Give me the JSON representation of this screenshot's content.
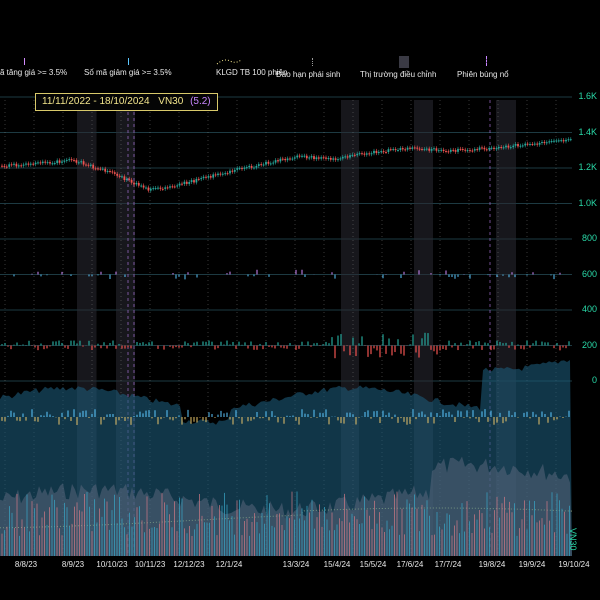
{
  "legend": {
    "items": [
      {
        "label": "ã tăng giá >= 3.5%",
        "color": "#d38cff",
        "icon": "violet-tick-icon"
      },
      {
        "label": "Số mã giảm giá >= 3.5%",
        "color": "#5cc8ff",
        "icon": "blue-tick-icon"
      },
      {
        "label": "KLGD TB 100 phiên",
        "color": "#f3e58c",
        "icon": "dotted-curve-icon"
      },
      {
        "label": "Đáo hạn phái sinh",
        "color": "#9a9a9a",
        "icon": "dotted-vline-icon"
      },
      {
        "label": "Thị trường điều chỉnh",
        "color": "#3a3a44",
        "icon": "shaded-band-icon"
      },
      {
        "label": "Phiên bùng nổ",
        "color": "#c886ff",
        "icon": "dashed-violet-vline-icon"
      }
    ]
  },
  "header": {
    "date_range": "11/11/2022 - 18/10/2024",
    "symbol": "VN30",
    "value": "(5.2)"
  },
  "side_label": "VN30",
  "colors": {
    "up": "#26a69a",
    "down": "#ef5350",
    "axis_text": "#29d9a8",
    "breadth_area": "#1c5a78",
    "volume_area": "#b07a84",
    "volume_avg": "#f3e58c"
  },
  "chart_data": {
    "type": "line",
    "y_axis": {
      "ticks": [
        "1.6K",
        "1.4K",
        "1.2K",
        "1.0K",
        "800",
        "600",
        "400",
        "200",
        "0"
      ],
      "tick_values": [
        1600,
        1400,
        1200,
        1000,
        800,
        600,
        400,
        200,
        0
      ]
    },
    "x_axis": {
      "ticks": [
        "8/8/23",
        "8/9/23",
        "10/10/23",
        "10/11/23",
        "12/12/23",
        "12/1/24",
        "13/3/24",
        "15/4/24",
        "15/5/24",
        "17/6/24",
        "17/7/24",
        "19/8/24",
        "19/9/24",
        "19/10/24"
      ]
    },
    "series": [
      {
        "name": "VN30",
        "x": [
          "8/8/23",
          "8/9/23",
          "10/10/23",
          "10/11/23",
          "12/12/23",
          "12/1/24",
          "13/3/24",
          "15/4/24",
          "15/5/24",
          "17/6/24",
          "17/7/24",
          "19/8/24",
          "19/9/24",
          "19/10/24"
        ],
        "values": [
          1220,
          1245,
          1170,
          1075,
          1120,
          1180,
          1265,
          1250,
          1290,
          1315,
          1295,
          1315,
          1335,
          1360
        ]
      }
    ],
    "correction_bands": [
      [
        "8/9/23",
        "10/10/23"
      ],
      [
        "10/10/23",
        "10/11/23"
      ],
      [
        "15/4/24",
        "15/5/24"
      ],
      [
        "17/6/24",
        "17/7/24"
      ],
      [
        "19/8/24",
        "19/9/24"
      ]
    ],
    "legend_position": "top"
  }
}
